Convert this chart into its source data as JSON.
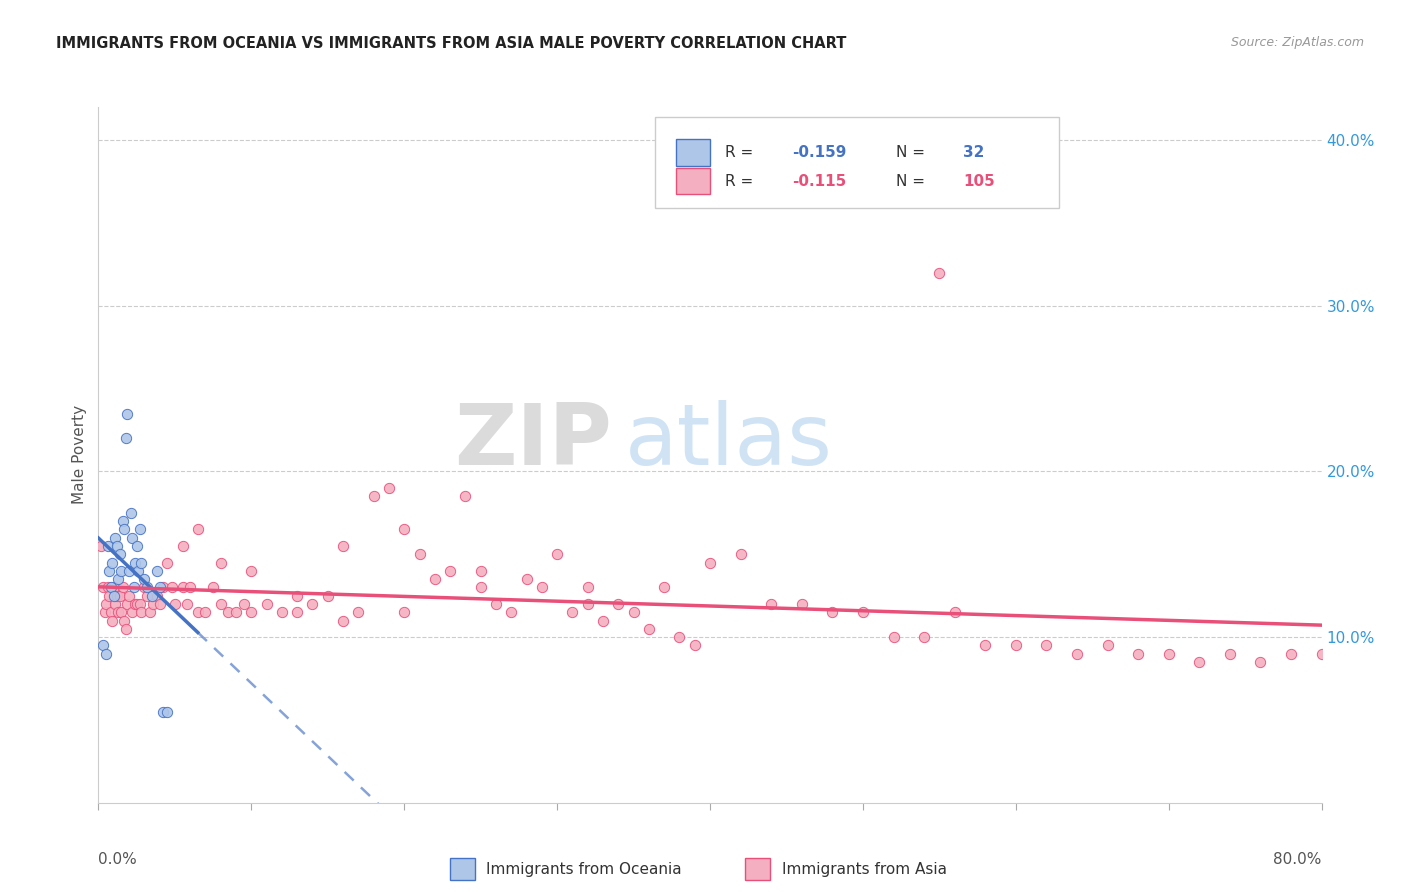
{
  "title": "IMMIGRANTS FROM OCEANIA VS IMMIGRANTS FROM ASIA MALE POVERTY CORRELATION CHART",
  "source_text": "Source: ZipAtlas.com",
  "ylabel": "Male Poverty",
  "xlim": [
    0,
    0.8
  ],
  "ylim": [
    0.0,
    0.42
  ],
  "yticks_right": [
    0.1,
    0.2,
    0.3,
    0.4
  ],
  "ytick_labels_right": [
    "10.0%",
    "20.0%",
    "30.0%",
    "40.0%"
  ],
  "oceania_color": "#aec6e8",
  "asia_color": "#f4afc0",
  "trend_oceania_color": "#4472c4",
  "trend_asia_color": "#e8507a",
  "watermark_zip": "ZIP",
  "watermark_atlas": "atlas",
  "oceania_x": [
    0.003,
    0.005,
    0.006,
    0.007,
    0.008,
    0.009,
    0.01,
    0.011,
    0.012,
    0.013,
    0.014,
    0.015,
    0.016,
    0.017,
    0.018,
    0.019,
    0.02,
    0.021,
    0.022,
    0.023,
    0.024,
    0.025,
    0.026,
    0.027,
    0.028,
    0.03,
    0.032,
    0.035,
    0.038,
    0.04,
    0.042,
    0.045
  ],
  "oceania_y": [
    0.095,
    0.09,
    0.155,
    0.14,
    0.13,
    0.145,
    0.125,
    0.16,
    0.155,
    0.135,
    0.15,
    0.14,
    0.17,
    0.165,
    0.22,
    0.235,
    0.14,
    0.175,
    0.16,
    0.13,
    0.145,
    0.155,
    0.14,
    0.165,
    0.145,
    0.135,
    0.13,
    0.125,
    0.14,
    0.13,
    0.055,
    0.055
  ],
  "asia_x": [
    0.002,
    0.003,
    0.004,
    0.005,
    0.006,
    0.007,
    0.008,
    0.009,
    0.01,
    0.011,
    0.012,
    0.013,
    0.014,
    0.015,
    0.016,
    0.017,
    0.018,
    0.019,
    0.02,
    0.022,
    0.024,
    0.025,
    0.027,
    0.028,
    0.03,
    0.032,
    0.034,
    0.036,
    0.038,
    0.04,
    0.042,
    0.045,
    0.048,
    0.05,
    0.055,
    0.058,
    0.06,
    0.065,
    0.07,
    0.075,
    0.08,
    0.085,
    0.09,
    0.095,
    0.1,
    0.11,
    0.12,
    0.13,
    0.14,
    0.15,
    0.16,
    0.17,
    0.18,
    0.19,
    0.2,
    0.21,
    0.22,
    0.23,
    0.24,
    0.25,
    0.26,
    0.27,
    0.28,
    0.29,
    0.3,
    0.31,
    0.32,
    0.33,
    0.34,
    0.35,
    0.36,
    0.37,
    0.38,
    0.39,
    0.4,
    0.42,
    0.44,
    0.46,
    0.48,
    0.5,
    0.52,
    0.54,
    0.55,
    0.56,
    0.58,
    0.6,
    0.62,
    0.64,
    0.66,
    0.68,
    0.7,
    0.72,
    0.74,
    0.76,
    0.78,
    0.8,
    0.055,
    0.065,
    0.08,
    0.1,
    0.13,
    0.16,
    0.2,
    0.25,
    0.32
  ],
  "asia_y": [
    0.155,
    0.13,
    0.115,
    0.12,
    0.13,
    0.125,
    0.115,
    0.11,
    0.13,
    0.12,
    0.125,
    0.115,
    0.125,
    0.115,
    0.13,
    0.11,
    0.105,
    0.12,
    0.125,
    0.115,
    0.12,
    0.12,
    0.12,
    0.115,
    0.13,
    0.125,
    0.115,
    0.12,
    0.125,
    0.12,
    0.13,
    0.145,
    0.13,
    0.12,
    0.13,
    0.12,
    0.13,
    0.115,
    0.115,
    0.13,
    0.12,
    0.115,
    0.115,
    0.12,
    0.115,
    0.12,
    0.115,
    0.115,
    0.12,
    0.125,
    0.11,
    0.115,
    0.185,
    0.19,
    0.115,
    0.15,
    0.135,
    0.14,
    0.185,
    0.14,
    0.12,
    0.115,
    0.135,
    0.13,
    0.15,
    0.115,
    0.12,
    0.11,
    0.12,
    0.115,
    0.105,
    0.13,
    0.1,
    0.095,
    0.145,
    0.15,
    0.12,
    0.12,
    0.115,
    0.115,
    0.1,
    0.1,
    0.32,
    0.115,
    0.095,
    0.095,
    0.095,
    0.09,
    0.095,
    0.09,
    0.09,
    0.085,
    0.09,
    0.085,
    0.09,
    0.09,
    0.155,
    0.165,
    0.145,
    0.14,
    0.125,
    0.155,
    0.165,
    0.13,
    0.13
  ]
}
